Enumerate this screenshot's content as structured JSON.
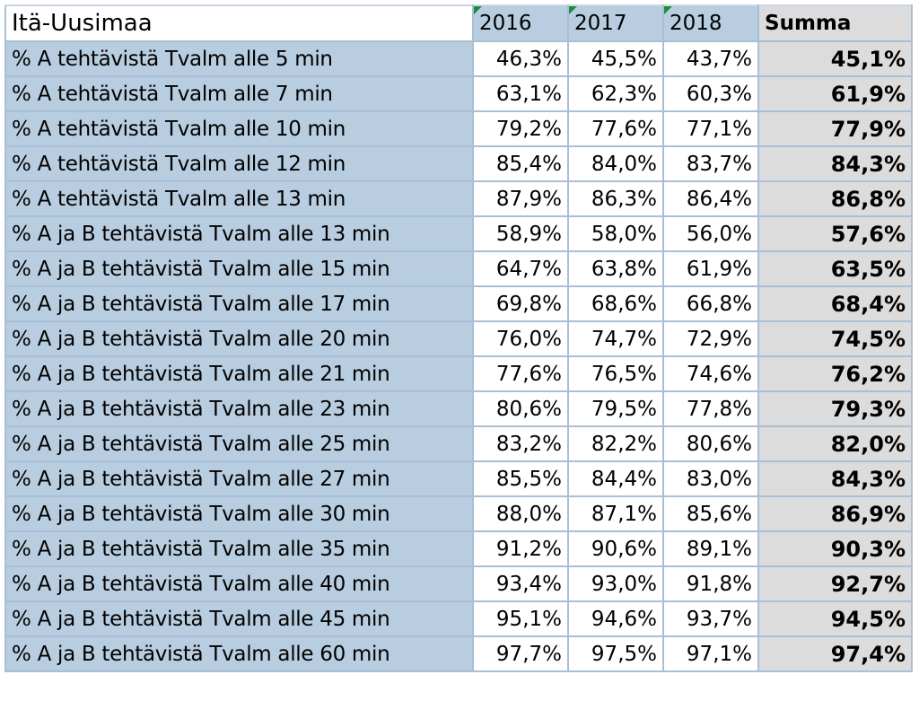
{
  "table": {
    "title": "Itä-Uusimaa",
    "years": [
      "2016",
      "2017",
      "2018"
    ],
    "sum_header": "Summa",
    "rows": [
      {
        "label": "% A tehtävistä Tvalm alle 5 min",
        "v2016": "46,3%",
        "v2017": "45,5%",
        "v2018": "43,7%",
        "sum": "45,1%"
      },
      {
        "label": "% A tehtävistä Tvalm alle 7 min",
        "v2016": "63,1%",
        "v2017": "62,3%",
        "v2018": "60,3%",
        "sum": "61,9%"
      },
      {
        "label": "% A tehtävistä Tvalm alle 10 min",
        "v2016": "79,2%",
        "v2017": "77,6%",
        "v2018": "77,1%",
        "sum": "77,9%"
      },
      {
        "label": "% A tehtävistä Tvalm alle 12 min",
        "v2016": "85,4%",
        "v2017": "84,0%",
        "v2018": "83,7%",
        "sum": "84,3%"
      },
      {
        "label": "% A tehtävistä Tvalm alle 13 min",
        "v2016": "87,9%",
        "v2017": "86,3%",
        "v2018": "86,4%",
        "sum": "86,8%"
      },
      {
        "label": "% A ja B tehtävistä Tvalm alle 13 min",
        "v2016": "58,9%",
        "v2017": "58,0%",
        "v2018": "56,0%",
        "sum": "57,6%"
      },
      {
        "label": "% A ja B tehtävistä Tvalm alle 15 min",
        "v2016": "64,7%",
        "v2017": "63,8%",
        "v2018": "61,9%",
        "sum": "63,5%"
      },
      {
        "label": "% A ja B tehtävistä Tvalm alle 17 min",
        "v2016": "69,8%",
        "v2017": "68,6%",
        "v2018": "66,8%",
        "sum": "68,4%"
      },
      {
        "label": "% A ja B tehtävistä Tvalm alle 20 min",
        "v2016": "76,0%",
        "v2017": "74,7%",
        "v2018": "72,9%",
        "sum": "74,5%"
      },
      {
        "label": "% A ja B tehtävistä Tvalm alle 21 min",
        "v2016": "77,6%",
        "v2017": "76,5%",
        "v2018": "74,6%",
        "sum": "76,2%"
      },
      {
        "label": "% A ja B tehtävistä Tvalm alle 23 min",
        "v2016": "80,6%",
        "v2017": "79,5%",
        "v2018": "77,8%",
        "sum": "79,3%"
      },
      {
        "label": "% A ja B tehtävistä Tvalm alle 25 min",
        "v2016": "83,2%",
        "v2017": "82,2%",
        "v2018": "80,6%",
        "sum": "82,0%"
      },
      {
        "label": "% A ja B tehtävistä Tvalm alle 27 min",
        "v2016": "85,5%",
        "v2017": "84,4%",
        "v2018": "83,0%",
        "sum": "84,3%"
      },
      {
        "label": "% A ja B tehtävistä Tvalm alle 30 min",
        "v2016": "88,0%",
        "v2017": "87,1%",
        "v2018": "85,6%",
        "sum": "86,9%"
      },
      {
        "label": "% A ja B tehtävistä Tvalm alle 35 min",
        "v2016": "91,2%",
        "v2017": "90,6%",
        "v2018": "89,1%",
        "sum": "90,3%"
      },
      {
        "label": "% A ja B tehtävistä Tvalm alle 40 min",
        "v2016": "93,4%",
        "v2017": "93,0%",
        "v2018": "91,8%",
        "sum": "92,7%"
      },
      {
        "label": "% A ja B tehtävistä Tvalm alle 45 min",
        "v2016": "95,1%",
        "v2017": "94,6%",
        "v2018": "93,7%",
        "sum": "94,5%"
      },
      {
        "label": "% A ja B tehtävistä Tvalm alle 60 min",
        "v2016": "97,7%",
        "v2017": "97,5%",
        "v2018": "97,1%",
        "sum": "97,4%"
      }
    ]
  },
  "colors": {
    "header_blue": "#b8cde0",
    "sum_gray": "#dcdcdc",
    "grid_line": "#a9bfd4",
    "corner_marker": "#1e8a3c"
  }
}
